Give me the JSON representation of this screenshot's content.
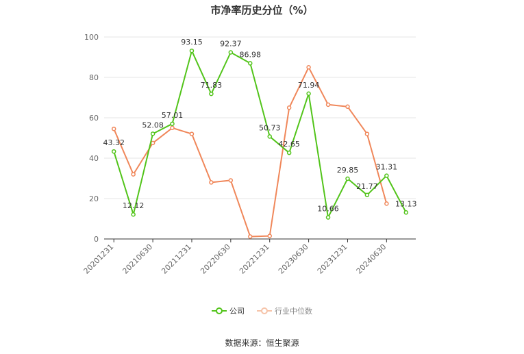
{
  "chart_data": {
    "type": "line",
    "title": "市净率历史分位（%）",
    "ylim": [
      0,
      100
    ],
    "yticks": [
      0,
      20,
      40,
      60,
      80,
      100
    ],
    "x_tick_labels": [
      "20201231",
      "20210630",
      "20211231",
      "20220630",
      "20221231",
      "20230630",
      "20231231",
      "20240630"
    ],
    "x": [
      "20201231",
      "20210331",
      "20210630",
      "20210930",
      "20211231",
      "20220331",
      "20220630",
      "20220930",
      "20221231",
      "20230331",
      "20230630",
      "20230930",
      "20231231",
      "20240331",
      "20240630",
      "20240930"
    ],
    "series": [
      {
        "name": "公司",
        "color": "#52c41a",
        "values": [
          43.32,
          12.12,
          52.08,
          57.01,
          93.15,
          71.83,
          92.37,
          86.98,
          50.73,
          42.65,
          71.94,
          10.66,
          29.85,
          21.77,
          31.31,
          13.13
        ],
        "labels": [
          "43.32",
          "12.12",
          "52.08",
          "57.01",
          "93.15",
          "71.83",
          "92.37",
          "86.98",
          "50.73",
          "42.65",
          "71.94",
          "10.66",
          "29.85",
          "21.77",
          "31.31",
          "13.13"
        ]
      },
      {
        "name": "行业中位数",
        "color": "#f0875a",
        "values": [
          54.5,
          32.0,
          47.5,
          55.0,
          52.0,
          28.0,
          29.0,
          1.2,
          1.5,
          65.0,
          85.0,
          66.5,
          65.5,
          52.0,
          17.5,
          null
        ]
      }
    ],
    "grid": true,
    "legend_position": "bottom"
  },
  "source": "数据来源：恒生聚源"
}
